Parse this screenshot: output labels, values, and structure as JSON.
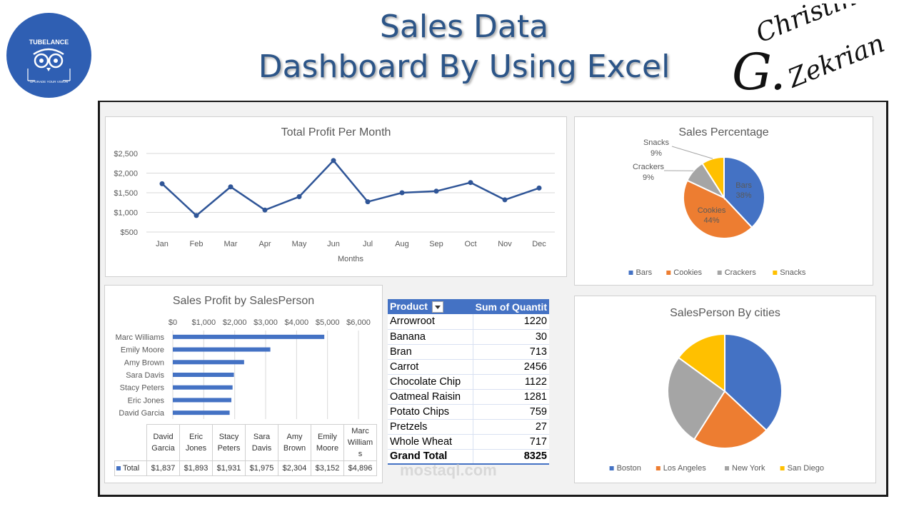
{
  "header": {
    "title_line1": "Sales Data",
    "title_line2": "Dashboard By Using Excel",
    "logo_text": "TUBELANCE",
    "logo_subtext": "UPGRADE YOUR VISION",
    "signature_line1": "Christine",
    "signature_initial": "G.",
    "signature_line2": "Zekrian",
    "watermark": "mostaql.com"
  },
  "colors": {
    "blue": "#4472c4",
    "orange": "#ed7d31",
    "gray": "#a5a5a5",
    "yellow": "#ffc000",
    "line": "#2f5597",
    "title_text": "#2c5588"
  },
  "chart_data": [
    {
      "type": "line",
      "title": "Total Profit Per Month",
      "xlabel": "Months",
      "ylabel": "",
      "categories": [
        "Jan",
        "Feb",
        "Mar",
        "Apr",
        "May",
        "Jun",
        "Jul",
        "Aug",
        "Sep",
        "Oct",
        "Nov",
        "Dec"
      ],
      "values": [
        1730,
        920,
        1650,
        1060,
        1400,
        2320,
        1270,
        1500,
        1540,
        1760,
        1320,
        1620
      ],
      "ylim": [
        500,
        2500
      ],
      "yticks": [
        "$500",
        "$1,000",
        "$1,500",
        "$2,000",
        "$2,500"
      ],
      "ytick_values": [
        500,
        1000,
        1500,
        2000,
        2500
      ],
      "grid": true
    },
    {
      "type": "pie",
      "title": "Sales Percentage",
      "categories": [
        "Bars",
        "Cookies",
        "Crackers",
        "Snacks"
      ],
      "values": [
        38,
        44,
        9,
        9
      ],
      "data_labels": [
        {
          "name": "Bars",
          "pct": "38%"
        },
        {
          "name": "Cookies",
          "pct": "44%"
        },
        {
          "name": "Crackers",
          "pct": "9%"
        },
        {
          "name": "Snacks",
          "pct": "9%"
        }
      ],
      "legend": "bottom"
    },
    {
      "type": "bar",
      "title": "Sales Profit by SalesPerson",
      "orientation": "horizontal",
      "categories": [
        "Marc Williams",
        "Emily Moore",
        "Amy Brown",
        "Sara Davis",
        "Stacy Peters",
        "Eric Jones",
        "David Garcia"
      ],
      "values": [
        4896,
        3152,
        2304,
        1975,
        1931,
        1893,
        1837
      ],
      "xlim": [
        0,
        6000
      ],
      "xticks": [
        "$0",
        "$1,000",
        "$2,000",
        "$3,000",
        "$4,000",
        "$5,000",
        "$6,000"
      ],
      "xtick_values": [
        0,
        1000,
        2000,
        3000,
        4000,
        5000,
        6000
      ],
      "data_table": {
        "columns": [
          "David\nGarcia",
          "Eric\nJones",
          "Stacy\nPeters",
          "Sara\nDavis",
          "Amy\nBrown",
          "Emily\nMoore",
          "Marc\nWilliam\ns"
        ],
        "row_label": "Total",
        "values": [
          "$1,837",
          "$1,893",
          "$1,931",
          "$1,975",
          "$2,304",
          "$3,152",
          "$4,896"
        ]
      },
      "grid": true
    },
    {
      "type": "pie",
      "title": "SalesPerson By cities",
      "categories": [
        "Boston",
        "Los Angeles",
        "New York",
        "San Diego"
      ],
      "values": [
        37,
        22,
        26,
        15
      ],
      "legend": "bottom"
    },
    {
      "type": "table",
      "headers": [
        "Product",
        "Sum of Quantit"
      ],
      "rows": [
        [
          "Arrowroot",
          "1220"
        ],
        [
          "Banana",
          "30"
        ],
        [
          "Bran",
          "713"
        ],
        [
          "Carrot",
          "2456"
        ],
        [
          "Chocolate Chip",
          "1122"
        ],
        [
          "Oatmeal Raisin",
          "1281"
        ],
        [
          "Potato Chips",
          "759"
        ],
        [
          "Pretzels",
          "27"
        ],
        [
          "Whole Wheat",
          "717"
        ]
      ],
      "total": [
        "Grand Total",
        "8325"
      ]
    }
  ]
}
